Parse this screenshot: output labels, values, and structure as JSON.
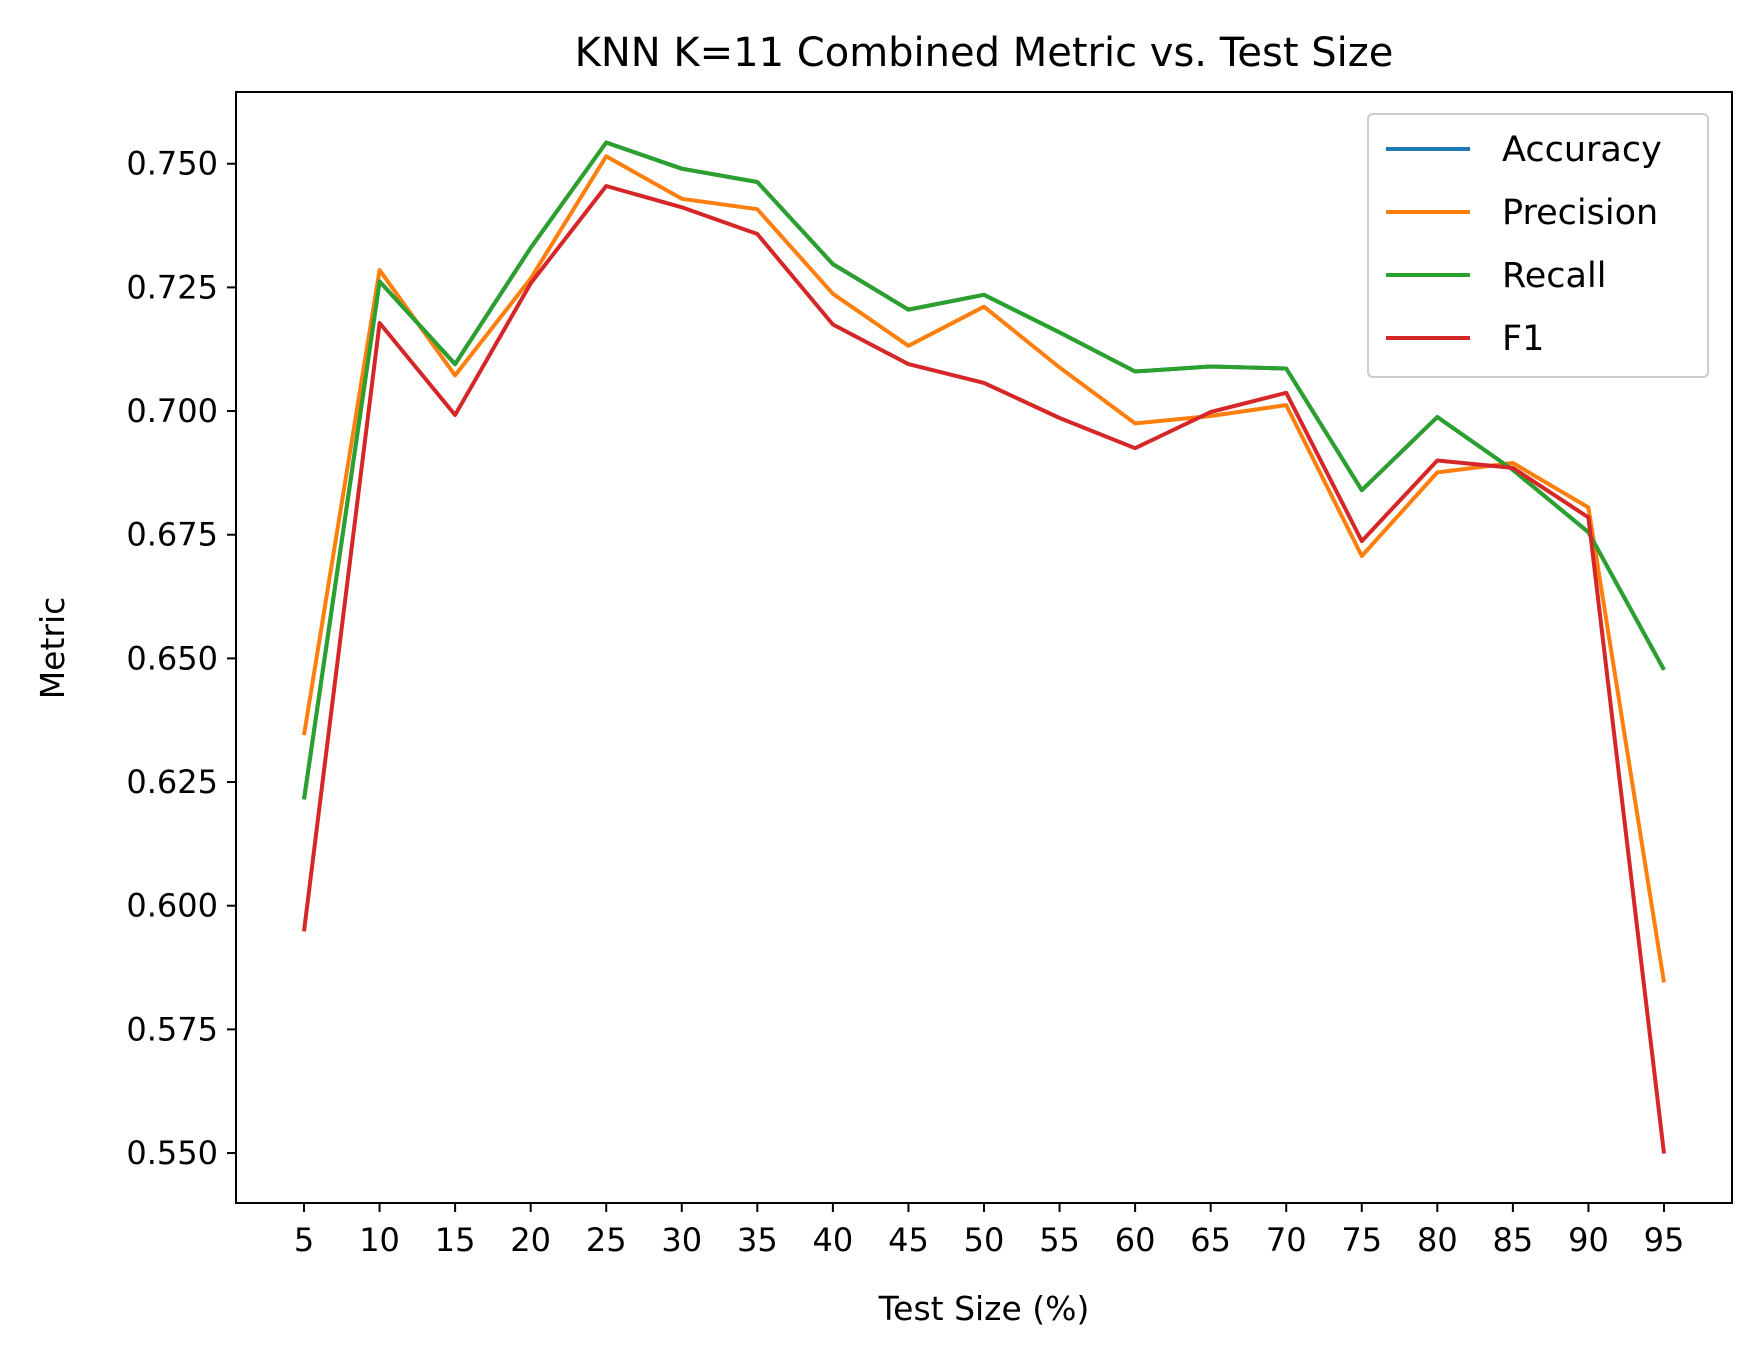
{
  "chart_data": {
    "type": "line",
    "title": "KNN K=11  Combined Metric vs. Test Size",
    "xlabel": "Test Size (%)",
    "ylabel": "Metric",
    "x": [
      5,
      10,
      15,
      20,
      25,
      30,
      35,
      40,
      45,
      50,
      55,
      60,
      65,
      70,
      75,
      80,
      85,
      90,
      95
    ],
    "x_tick_labels": [
      "5",
      "10",
      "15",
      "20",
      "25",
      "30",
      "35",
      "40",
      "45",
      "50",
      "55",
      "60",
      "65",
      "70",
      "75",
      "80",
      "85",
      "90",
      "95"
    ],
    "xlim": [
      0.5,
      99.5
    ],
    "ylim": [
      0.5399,
      0.7645
    ],
    "y_ticks": [
      0.55,
      0.575,
      0.6,
      0.625,
      0.65,
      0.675,
      0.7,
      0.725,
      0.75
    ],
    "y_tick_labels": [
      "0.550",
      "0.575",
      "0.600",
      "0.625",
      "0.650",
      "0.675",
      "0.700",
      "0.725",
      "0.750"
    ],
    "grid": false,
    "legend_position": "top-right",
    "series": [
      {
        "name": "Accuracy",
        "color": "#1f77b4",
        "values": [
          0.6215,
          0.7262,
          0.7095,
          0.733,
          0.7543,
          0.749,
          0.7463,
          0.7297,
          0.7205,
          0.7235,
          0.7159,
          0.708,
          0.709,
          0.7086,
          0.684,
          0.6988,
          0.6881,
          0.6755,
          0.6477
        ]
      },
      {
        "name": "Precision",
        "color": "#ff7f0e",
        "values": [
          0.6345,
          0.7285,
          0.7072,
          0.7268,
          0.7515,
          0.7429,
          0.7408,
          0.7237,
          0.7132,
          0.7211,
          0.7088,
          0.6975,
          0.699,
          0.7012,
          0.6707,
          0.6876,
          0.6895,
          0.6805,
          0.5845
        ]
      },
      {
        "name": "Recall",
        "color": "#2ca02c",
        "values": [
          0.6215,
          0.7262,
          0.7095,
          0.733,
          0.7543,
          0.749,
          0.7463,
          0.7297,
          0.7205,
          0.7235,
          0.7159,
          0.708,
          0.709,
          0.7086,
          0.684,
          0.6988,
          0.6881,
          0.6755,
          0.6477
        ]
      },
      {
        "name": "F1",
        "color": "#d62728",
        "values": [
          0.5948,
          0.7178,
          0.6992,
          0.7258,
          0.7455,
          0.7412,
          0.7358,
          0.7175,
          0.7095,
          0.7057,
          0.6986,
          0.6925,
          0.6998,
          0.7037,
          0.6737,
          0.69,
          0.6885,
          0.6785,
          0.5499
        ]
      }
    ]
  }
}
